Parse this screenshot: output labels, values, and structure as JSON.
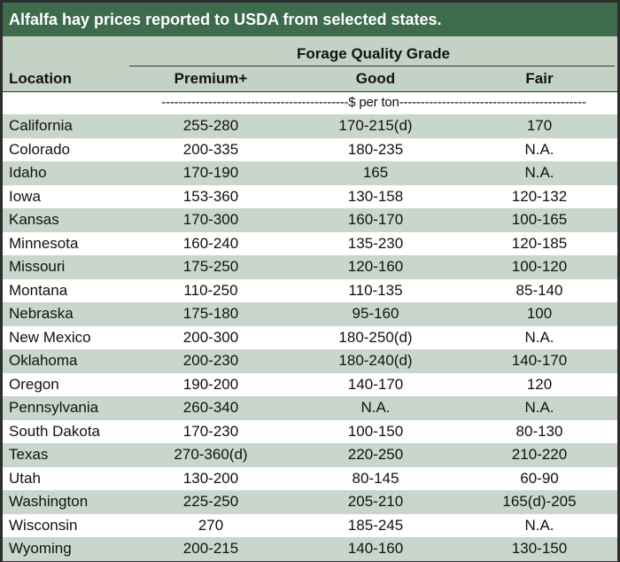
{
  "title": "Alfalfa hay prices reported to USDA from selected states.",
  "header": {
    "group_label": "Forage Quality Grade",
    "location": "Location",
    "premium": "Premium+",
    "good": "Good",
    "fair": "Fair"
  },
  "unit_row": "--------------------------------------------$ per ton--------------------------------------------",
  "rows": [
    {
      "location": "California",
      "premium": "255-280",
      "good": "170-215(d)",
      "fair": "170"
    },
    {
      "location": "Colorado",
      "premium": "200-335",
      "good": "180-235",
      "fair": "N.A."
    },
    {
      "location": "Idaho",
      "premium": "170-190",
      "good": "165",
      "fair": "N.A."
    },
    {
      "location": "Iowa",
      "premium": "153-360",
      "good": "130-158",
      "fair": "120-132"
    },
    {
      "location": "Kansas",
      "premium": "170-300",
      "good": "160-170",
      "fair": "100-165"
    },
    {
      "location": "Minnesota",
      "premium": "160-240",
      "good": "135-230",
      "fair": "120-185"
    },
    {
      "location": "Missouri",
      "premium": "175-250",
      "good": "120-160",
      "fair": "100-120"
    },
    {
      "location": "Montana",
      "premium": "110-250",
      "good": "110-135",
      "fair": "85-140"
    },
    {
      "location": "Nebraska",
      "premium": "175-180",
      "good": "95-160",
      "fair": "100"
    },
    {
      "location": "New Mexico",
      "premium": "200-300",
      "good": "180-250(d)",
      "fair": "N.A."
    },
    {
      "location": "Oklahoma",
      "premium": "200-230",
      "good": "180-240(d)",
      "fair": "140-170"
    },
    {
      "location": "Oregon",
      "premium": "190-200",
      "good": "140-170",
      "fair": "120"
    },
    {
      "location": "Pennsylvania",
      "premium": "260-340",
      "good": "N.A.",
      "fair": "N.A."
    },
    {
      "location": "South Dakota",
      "premium": "170-230",
      "good": "100-150",
      "fair": "80-130"
    },
    {
      "location": "Texas",
      "premium": "270-360(d)",
      "good": "220-250",
      "fair": "210-220"
    },
    {
      "location": "Utah",
      "premium": "130-200",
      "good": "80-145",
      "fair": "60-90"
    },
    {
      "location": "Washington",
      "premium": "225-250",
      "good": "205-210",
      "fair": "165(d)-205"
    },
    {
      "location": "Wisconsin",
      "premium": "270",
      "good": "185-245",
      "fair": "N.A."
    },
    {
      "location": "Wyoming",
      "premium": "200-215",
      "good": "140-160",
      "fair": "130-150"
    }
  ]
}
